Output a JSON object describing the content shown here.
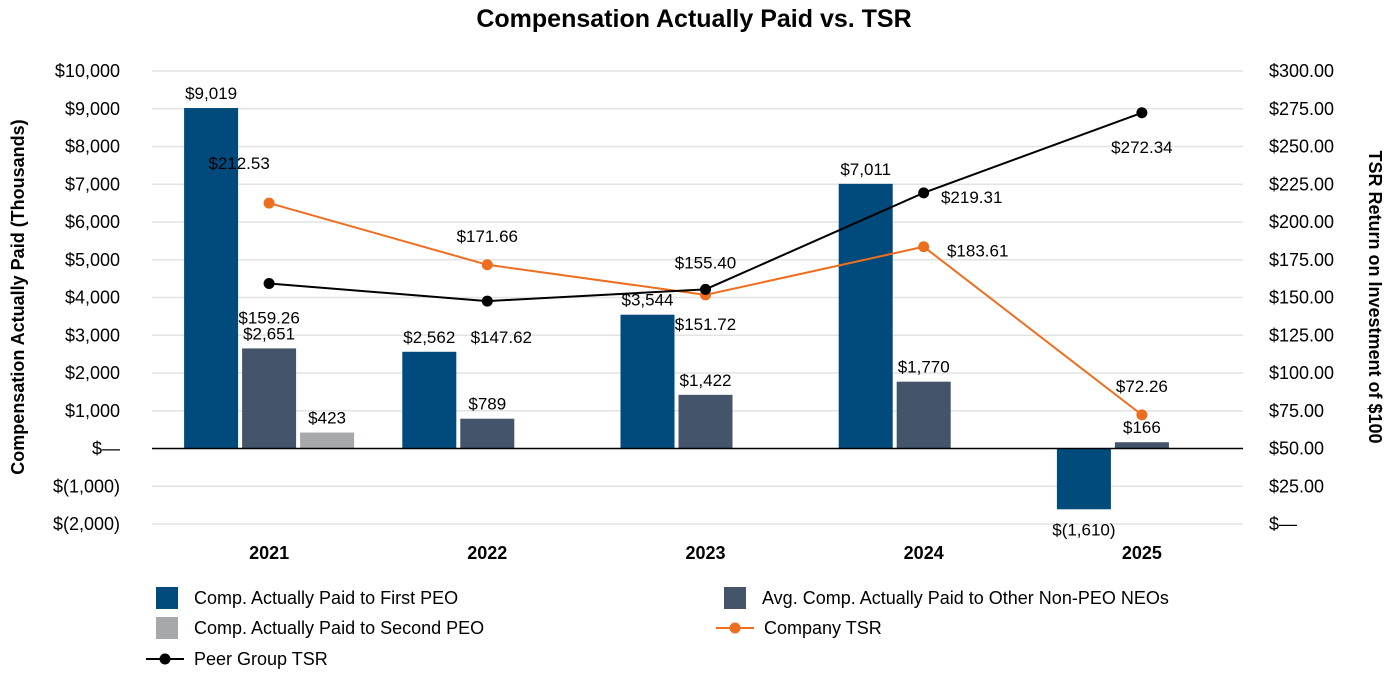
{
  "chart_data": {
    "type": "bar",
    "title": "Compensation Actually Paid vs. TSR",
    "categories": [
      "2021",
      "2022",
      "2023",
      "2024",
      "2025"
    ],
    "y_left": {
      "label": "Compensation Actually Paid (Thousands)",
      "range": [
        -2000,
        10000
      ],
      "ticks": [
        -2000,
        -1000,
        0,
        1000,
        2000,
        3000,
        4000,
        5000,
        6000,
        7000,
        8000,
        9000,
        10000
      ],
      "tick_labels": [
        "$(2,000)",
        "$(1,000)",
        "$—",
        "$1,000",
        "$2,000",
        "$3,000",
        "$4,000",
        "$5,000",
        "$6,000",
        "$7,000",
        "$8,000",
        "$9,000",
        "$10,000"
      ]
    },
    "y_right": {
      "label": "TSR Return on Investment of $100",
      "range": [
        0,
        300
      ],
      "ticks": [
        0,
        25,
        50,
        75,
        100,
        125,
        150,
        175,
        200,
        225,
        250,
        275,
        300
      ],
      "tick_labels": [
        "$—",
        "$25.00",
        "$50.00",
        "$75.00",
        "$100.00",
        "$125.00",
        "$150.00",
        "$175.00",
        "$200.00",
        "$225.00",
        "$250.00",
        "$275.00",
        "$300.00"
      ]
    },
    "bar_series": [
      {
        "name": "Comp. Actually Paid to First PEO",
        "color": "#004a7c",
        "values": [
          9019,
          2562,
          3544,
          7011,
          -1610
        ],
        "labels": [
          "$9,019",
          "$2,562",
          "$3,544",
          "$7,011",
          "$(1,610)"
        ]
      },
      {
        "name": "Avg. Comp. Actually Paid to Other Non-PEO NEOs",
        "color": "#44546a",
        "values": [
          2651,
          789,
          1422,
          1770,
          166
        ],
        "labels": [
          "$2,651",
          "$789",
          "$1,422",
          "$1,770",
          "$166"
        ]
      },
      {
        "name": "Comp. Actually Paid to Second PEO",
        "color": "#a6a8ab",
        "values": [
          423,
          null,
          null,
          null,
          null
        ],
        "labels": [
          "$423",
          null,
          null,
          null,
          null
        ]
      }
    ],
    "line_series": [
      {
        "name": "Company TSR",
        "color": "#ee6e1f",
        "values": [
          212.53,
          171.66,
          151.72,
          183.61,
          72.26
        ],
        "labels": [
          "$212.53",
          "$171.66",
          "$151.72",
          "$183.61",
          "$72.26"
        ]
      },
      {
        "name": "Peer Group TSR",
        "color": "#000000",
        "values": [
          159.26,
          147.62,
          155.4,
          219.31,
          272.34
        ],
        "labels": [
          "$159.26",
          "$147.62",
          "$155.40",
          "$219.31",
          "$272.34"
        ]
      }
    ],
    "legend": [
      "Comp. Actually Paid to First PEO",
      "Avg. Comp. Actually Paid to Other Non-PEO NEOs",
      "Comp. Actually Paid to Second PEO",
      "Company TSR",
      "Peer Group TSR"
    ],
    "grid": true,
    "legend_position": "bottom"
  }
}
